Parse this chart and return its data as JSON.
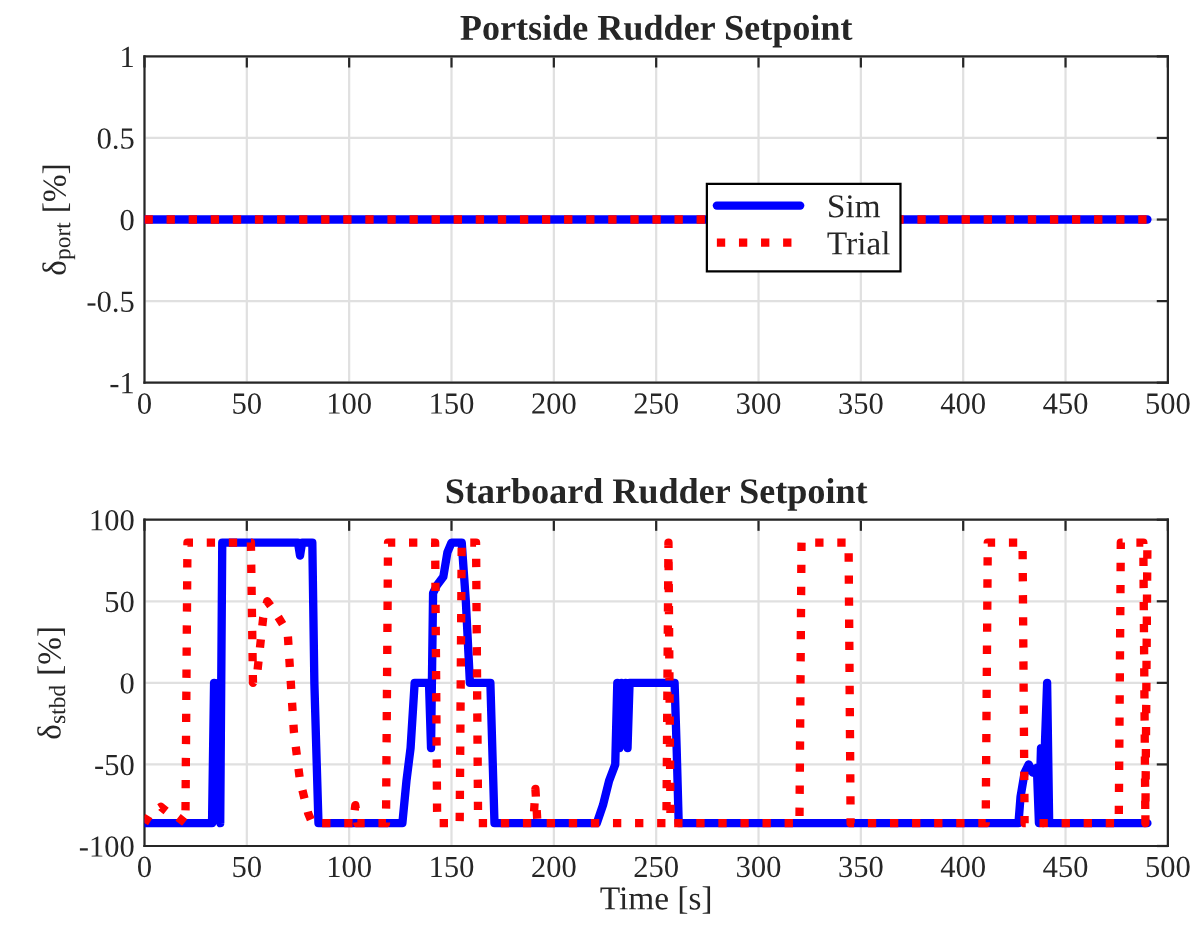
{
  "chart_data": [
    {
      "type": "line",
      "title": "Portside Rudder Setpoint",
      "ylabel": "δ$_{port}$ [%]",
      "xlim": [
        0,
        500
      ],
      "xticks": [
        0,
        50,
        100,
        150,
        200,
        250,
        300,
        350,
        400,
        450,
        500
      ],
      "ylim": [
        -1,
        1
      ],
      "yticks": [
        -1,
        -0.5,
        0,
        0.5,
        1
      ],
      "grid": true,
      "legend": "right",
      "series": [
        {
          "name": "Sim",
          "color": "#0000ff",
          "line_style": "solid",
          "x": [
            0,
            490
          ],
          "values": [
            0,
            0
          ]
        },
        {
          "name": "Trial",
          "color": "#ff0000",
          "line_style": "dotted",
          "x": [
            0,
            490
          ],
          "values": [
            0,
            0
          ]
        }
      ]
    },
    {
      "type": "line",
      "title": "Starboard Rudder Setpoint",
      "xlabel": "Time [s]",
      "ylabel": "δ$_{stbd}$ [%]",
      "xlim": [
        0,
        500
      ],
      "xticks": [
        0,
        50,
        100,
        150,
        200,
        250,
        300,
        350,
        400,
        450,
        500
      ],
      "ylim": [
        -100,
        100
      ],
      "yticks": [
        -100,
        -50,
        0,
        50,
        100
      ],
      "grid": true,
      "series": [
        {
          "color": "#0000ff",
          "line_style": "solid",
          "x": [
            0,
            33,
            34,
            35,
            36,
            37,
            38,
            75,
            76,
            77,
            82,
            83,
            85,
            126,
            128,
            130,
            132,
            139,
            140,
            141,
            143,
            146,
            148,
            150,
            155,
            157,
            159,
            169,
            171,
            221,
            224,
            227,
            230,
            231,
            232,
            233,
            234,
            235,
            236,
            237,
            259,
            260,
            261,
            427,
            428,
            430,
            432,
            434,
            436,
            437,
            438,
            439,
            440,
            441,
            442,
            490
          ],
          "values": [
            -86,
            -86,
            0,
            -40,
            0,
            -86,
            86,
            86,
            78,
            86,
            86,
            0,
            -86,
            -86,
            -60,
            -40,
            0,
            0,
            -40,
            55,
            60,
            65,
            80,
            86,
            86,
            50,
            0,
            0,
            -86,
            -86,
            -75,
            -60,
            -50,
            0,
            -40,
            0,
            -30,
            0,
            -40,
            0,
            0,
            -40,
            -86,
            -86,
            -70,
            -55,
            -50,
            -55,
            -52,
            -86,
            -40,
            -86,
            -35,
            0,
            -86,
            -86
          ]
        },
        {
          "color": "#ff0000",
          "line_style": "dotted",
          "x": [
            0,
            3,
            8,
            12,
            16,
            20,
            21,
            52,
            53,
            55,
            58,
            60,
            63,
            68,
            70,
            73,
            76,
            80,
            82,
            102,
            103,
            104,
            118,
            119,
            142,
            143,
            154,
            155,
            162,
            163,
            190,
            191,
            192,
            255,
            256,
            257,
            320,
            321,
            344,
            345,
            411,
            412,
            429,
            430,
            476,
            477,
            488,
            489,
            490
          ],
          "values": [
            -86,
            -80,
            -76,
            -80,
            -82,
            -86,
            86,
            86,
            0,
            5,
            40,
            50,
            45,
            35,
            30,
            -30,
            -60,
            -80,
            -86,
            -86,
            -75,
            -86,
            -86,
            86,
            86,
            -86,
            -86,
            86,
            86,
            -86,
            -86,
            -65,
            -86,
            -86,
            86,
            -86,
            -86,
            86,
            86,
            -86,
            -86,
            86,
            86,
            -86,
            -86,
            86,
            86,
            -86,
            86
          ]
        }
      ]
    }
  ]
}
